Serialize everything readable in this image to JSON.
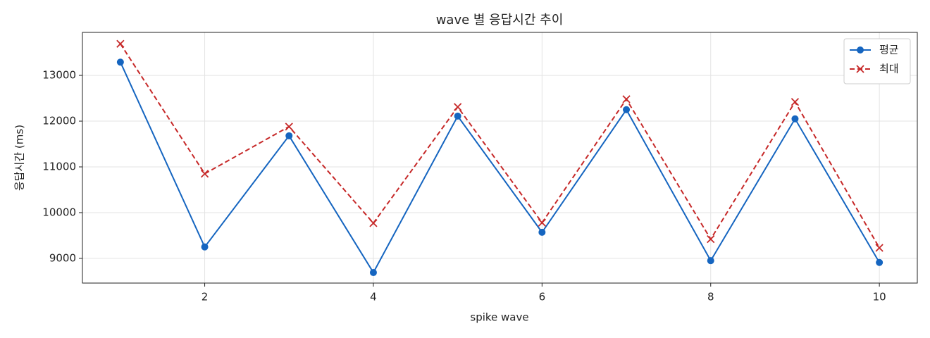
{
  "chart_data": {
    "type": "line",
    "title": "wave 별 응답시간 추이",
    "x_label": "spike wave",
    "y_label": "응답시간 (ms)",
    "x": [
      1,
      2,
      3,
      4,
      5,
      6,
      7,
      8,
      9,
      10
    ],
    "series": [
      {
        "name": "평균",
        "color": "#1565c0",
        "marker": "circle",
        "linestyle": "solid",
        "values": [
          13290,
          9250,
          11680,
          8690,
          12110,
          9570,
          12250,
          8950,
          12050,
          8910
        ]
      },
      {
        "name": "최대",
        "color": "#c62828",
        "marker": "x",
        "linestyle": "dashed",
        "values": [
          13690,
          10850,
          11880,
          9770,
          12310,
          9780,
          12480,
          9420,
          12420,
          9230
        ]
      }
    ],
    "xlim": [
      0.55,
      10.45
    ],
    "ylim": [
      8460,
      13940
    ],
    "xticks": [
      2,
      4,
      6,
      8,
      10
    ],
    "yticks": [
      9000,
      10000,
      11000,
      12000,
      13000
    ],
    "grid": true,
    "legend": "upper right"
  }
}
